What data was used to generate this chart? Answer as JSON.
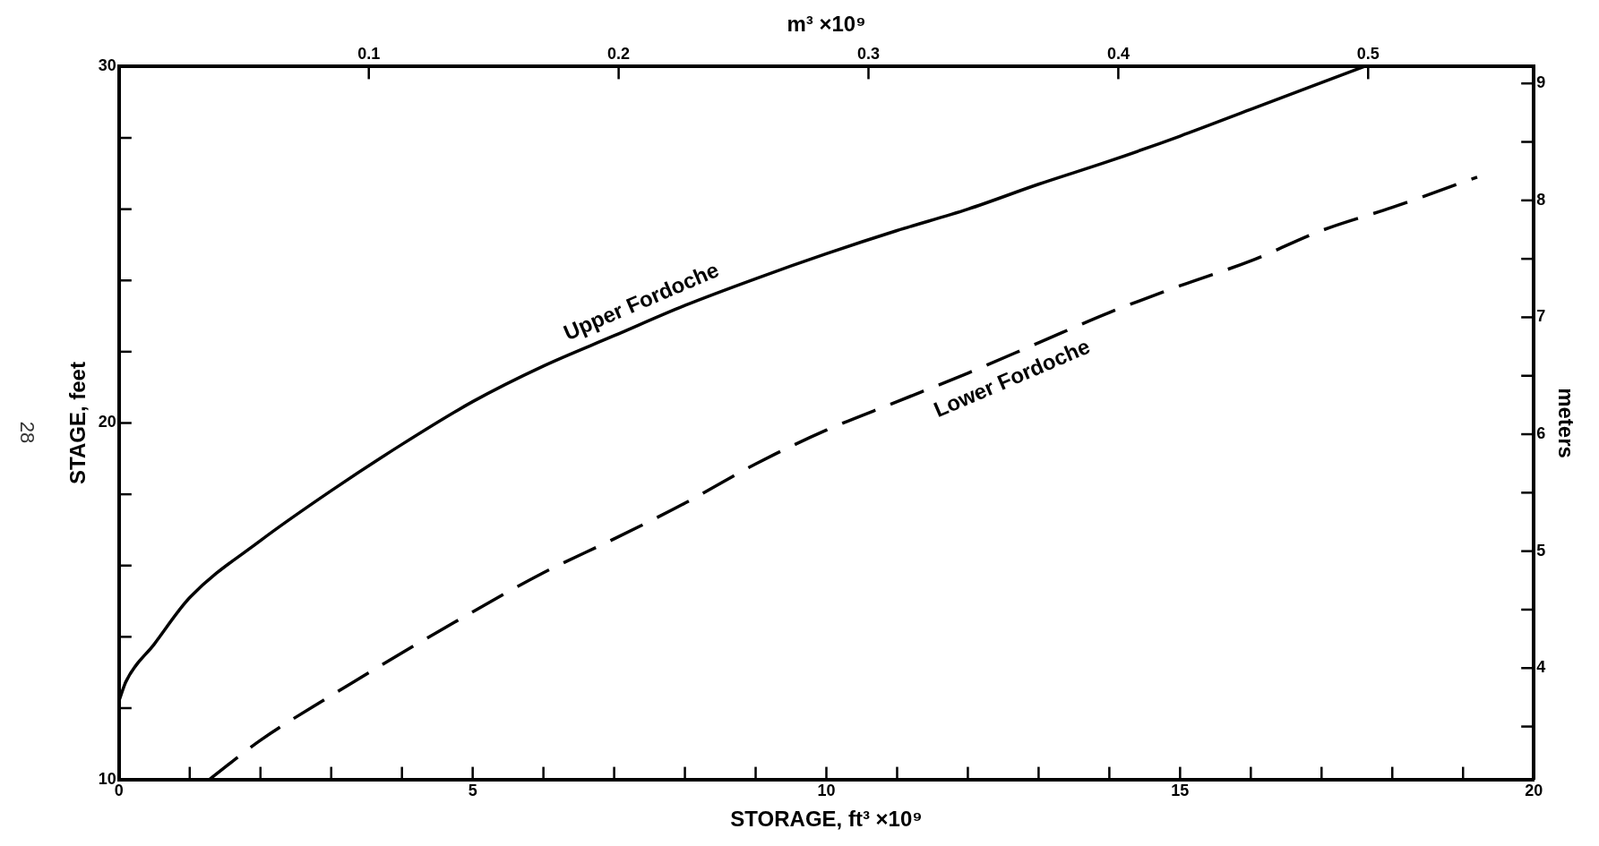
{
  "chart_data": {
    "type": "line",
    "xlabel": "STORAGE, ft³ ×10⁹",
    "x2label": "m³ ×10⁹",
    "ylabel": "STAGE, feet",
    "y2label": "meters",
    "annotations": [
      "28"
    ],
    "xlim": [
      0,
      20
    ],
    "xticks": [
      0,
      {
        "value": 1,
        "label": null
      },
      {
        "value": 2,
        "label": null
      },
      {
        "value": 3,
        "label": null
      },
      {
        "value": 4,
        "label": null
      },
      5,
      {
        "value": 6,
        "label": null
      },
      {
        "value": 7,
        "label": null
      },
      {
        "value": 8,
        "label": null
      },
      {
        "value": 9,
        "label": null
      },
      10,
      {
        "value": 11,
        "label": null
      },
      {
        "value": 12,
        "label": null
      },
      {
        "value": 13,
        "label": null
      },
      {
        "value": 14,
        "label": null
      },
      15,
      {
        "value": 16,
        "label": null
      },
      {
        "value": 17,
        "label": null
      },
      {
        "value": 18,
        "label": null
      },
      {
        "value": 19,
        "label": null
      },
      20
    ],
    "ylim": [
      10,
      30
    ],
    "yticks": [
      10,
      {
        "value": 12,
        "label": null
      },
      {
        "value": 14,
        "label": null
      },
      {
        "value": 16,
        "label": null
      },
      {
        "value": 18,
        "label": null
      },
      20,
      {
        "value": 22,
        "label": null
      },
      {
        "value": 24,
        "label": null
      },
      {
        "value": 26,
        "label": null
      },
      {
        "value": 28,
        "label": null
      },
      30
    ],
    "x2lim": [
      0,
      0.5663
    ],
    "x2ticks": [
      0.1,
      0.2,
      0.3,
      0.4,
      0.5
    ],
    "y2lim": [
      3.048,
      9.144
    ],
    "y2ticks": [
      {
        "value": 3.5,
        "label": null
      },
      4,
      {
        "value": 4.5,
        "label": null
      },
      5,
      {
        "value": 5.5,
        "label": null
      },
      6,
      {
        "value": 6.5,
        "label": null
      },
      7,
      {
        "value": 7.5,
        "label": null
      },
      8,
      {
        "value": 8.5,
        "label": null
      },
      9
    ],
    "grid": false,
    "legend": false,
    "marker": "none",
    "series": [
      {
        "name": "Upper Fordoche",
        "color": "#000000",
        "line_style": "solid",
        "x": [
          0,
          0.1,
          0.5,
          1,
          2,
          3,
          4,
          5,
          6,
          7,
          8,
          9,
          10,
          11,
          12,
          13,
          14,
          15,
          16,
          17.6
        ],
        "values": [
          12.2,
          12.75,
          13.8,
          15.1,
          16.7,
          18.1,
          19.4,
          20.6,
          21.6,
          22.45,
          23.3,
          24.05,
          24.75,
          25.4,
          26.0,
          26.7,
          27.35,
          28.05,
          28.8,
          30.0
        ]
      },
      {
        "name": "Lower Fordoche",
        "color": "#000000",
        "line_style": "dashed",
        "x": [
          1.28,
          2,
          3,
          4,
          5,
          6,
          7,
          8,
          9,
          10,
          11,
          12,
          13,
          14,
          15,
          16,
          17,
          18,
          19.2
        ],
        "values": [
          10.0,
          11.1,
          12.35,
          13.55,
          14.7,
          15.8,
          16.75,
          17.75,
          18.85,
          19.8,
          20.6,
          21.4,
          22.25,
          23.1,
          23.85,
          24.55,
          25.4,
          26.05,
          26.9
        ]
      }
    ]
  }
}
